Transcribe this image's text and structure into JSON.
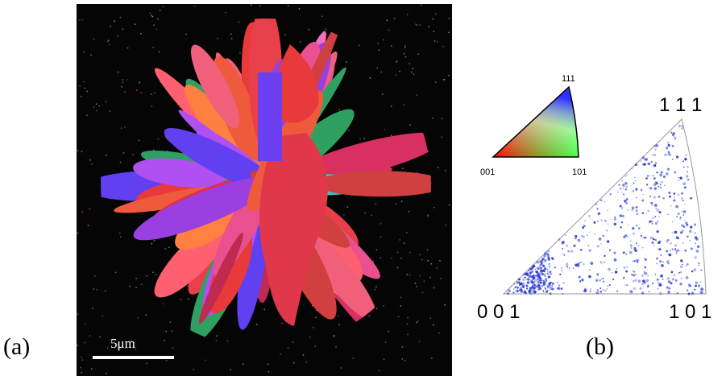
{
  "panel_a": {
    "label": "(a)",
    "scale_bar": "5μm"
  },
  "panel_b": {
    "label": "(b)",
    "key_triangle": {
      "top": "111",
      "left": "001",
      "right": "101"
    },
    "pole_figure": {
      "top": "1 1 1",
      "left": "0 0 1",
      "right": "1 0 1"
    }
  }
}
